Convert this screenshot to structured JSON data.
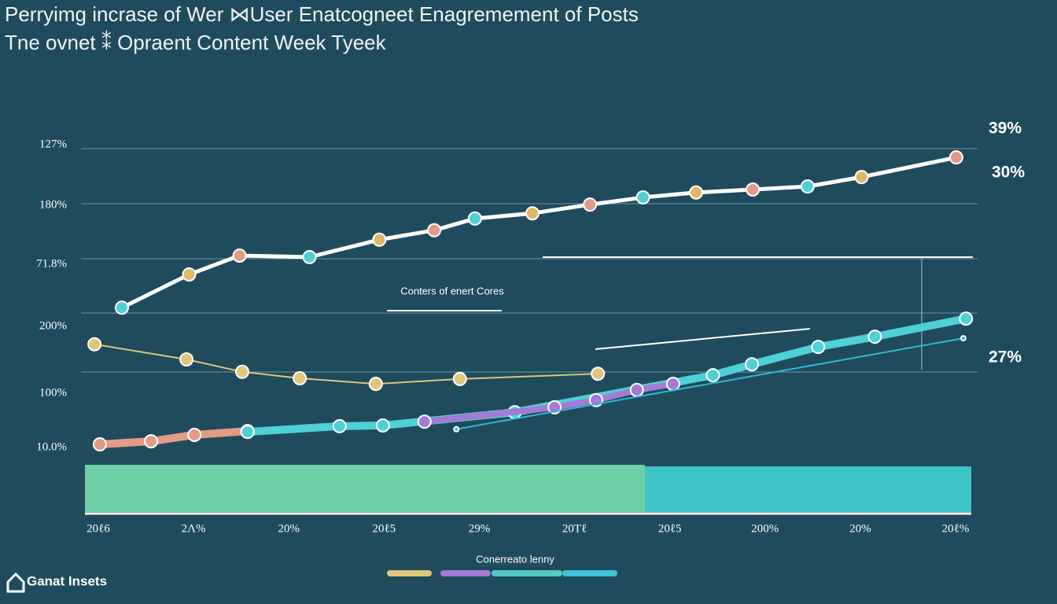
{
  "chart_data": {
    "type": "line",
    "title": "Perryimg incrase of Wer ⋈User Enatcogneet Enagremement of Posts",
    "subtitle": "Tne ovnet ⁑ Opraent Content Week Tyeek",
    "y_labels": [
      "127%",
      "180%",
      "71.8%",
      "200%",
      "100%",
      "10.0%"
    ],
    "categories": [
      "20ℓ6",
      "2Λ%",
      "20%",
      "20ℓ5",
      "29%",
      "20Tℓ",
      "20ℓ5",
      "200%",
      "20%",
      "20ℓ%"
    ],
    "xlim": [
      0,
      100
    ],
    "ylim": [
      0,
      100
    ],
    "annotations": [
      "39%",
      "30%",
      "27%"
    ],
    "inner_label": "Conters of enert Cores",
    "legend_title": "Conerreato lenny",
    "brand": "Ganat Insets",
    "series": [
      {
        "color": "#ffffff",
        "x": [
          4.0,
          11.6,
          17.3,
          25.2,
          33.1,
          39.3,
          43.9,
          50.4,
          56.9,
          62.9,
          68.9,
          75.3,
          81.5,
          87.6,
          98.3
        ],
        "values": [
          56.0,
          64.8,
          69.8,
          69.4,
          74.0,
          76.5,
          79.6,
          81.0,
          83.3,
          85.2,
          86.5,
          87.3,
          88.1,
          90.6,
          95.8
        ]
      },
      {
        "color": "#e0c57a",
        "x": [
          0.9,
          11.3,
          17.6,
          24.1,
          32.7,
          42.2,
          57.8
        ],
        "values": [
          46.3,
          42.3,
          39.0,
          37.3,
          35.8,
          37.1,
          38.5
        ]
      },
      {
        "color": "#e39a86",
        "x": [
          1.5,
          7.3,
          12.2,
          18.2
        ],
        "values": [
          19.8,
          20.6,
          22.3,
          23.3
        ]
      },
      {
        "color": "#4fd0d6",
        "x": [
          18.2,
          28.6,
          33.5,
          48.4,
          70.8,
          75.2,
          82.7,
          89.1,
          99.4
        ],
        "values": [
          23.1,
          24.6,
          24.8,
          28.3,
          38.1,
          41.0,
          45.6,
          48.3,
          53.1
        ]
      },
      {
        "color": "#a57ad6",
        "x": [
          38.2,
          52.9,
          57.6,
          62.2,
          66.3
        ],
        "values": [
          25.8,
          29.6,
          31.5,
          34.2,
          35.8
        ]
      },
      {
        "color": "#2fb8d0",
        "x": [
          41.8,
          99.1
        ],
        "values": [
          23.8,
          47.9
        ]
      }
    ]
  }
}
